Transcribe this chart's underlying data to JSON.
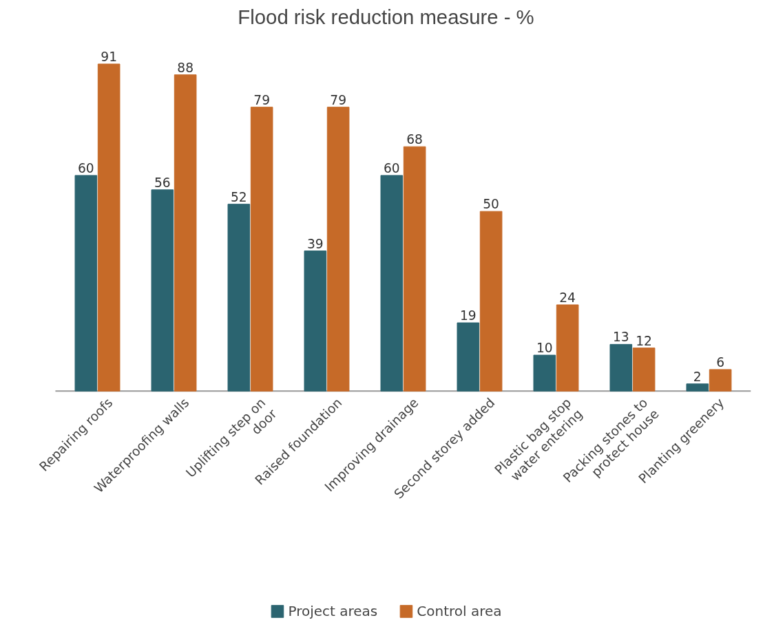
{
  "chart_data": {
    "type": "bar",
    "title": "Flood risk reduction measure - %",
    "categories": [
      "Repairing roofs",
      "Waterproofing walls",
      "Uplifting step on door",
      "Raised foundation",
      "Improving drainage",
      "Second storey added",
      "Plastic bag stop water entering",
      "Packing stones to protect house",
      "Planting greenery"
    ],
    "series": [
      {
        "name": "Project areas",
        "color": "#2b6470",
        "values": [
          60,
          56,
          52,
          39,
          60,
          19,
          10,
          13,
          2
        ]
      },
      {
        "name": "Control area",
        "color": "#c66a28",
        "values": [
          91,
          88,
          79,
          79,
          68,
          50,
          24,
          12,
          6
        ]
      }
    ],
    "data_labels": true,
    "grid": false,
    "legend": "bottom"
  }
}
